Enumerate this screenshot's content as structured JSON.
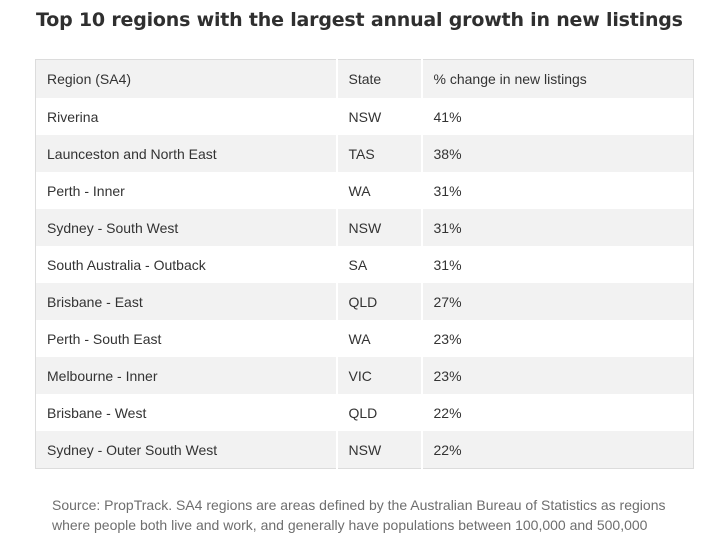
{
  "title": "Top 10 regions with the largest annual growth in new listings",
  "table": {
    "headers": [
      "Region (SA4)",
      "State",
      "% change in new listings"
    ],
    "rows": [
      [
        "Riverina",
        "NSW",
        "41%"
      ],
      [
        "Launceston and North East",
        "TAS",
        "38%"
      ],
      [
        "Perth - Inner",
        "WA",
        "31%"
      ],
      [
        "Sydney - South West",
        "NSW",
        "31%"
      ],
      [
        "South Australia - Outback",
        "SA",
        "31%"
      ],
      [
        "Brisbane - East",
        "QLD",
        "27%"
      ],
      [
        "Perth - South East",
        "WA",
        "23%"
      ],
      [
        "Melbourne - Inner",
        "VIC",
        "23%"
      ],
      [
        "Brisbane - West",
        "QLD",
        "22%"
      ],
      [
        "Sydney - Outer South West",
        "NSW",
        "22%"
      ]
    ]
  },
  "source": {
    "line1": "Source: PropTrack. SA4 regions are areas defined by the Australian Bureau of Statistics as regions",
    "line2": "where people both live and work, and generally have populations between 100,000 and 500,000"
  }
}
